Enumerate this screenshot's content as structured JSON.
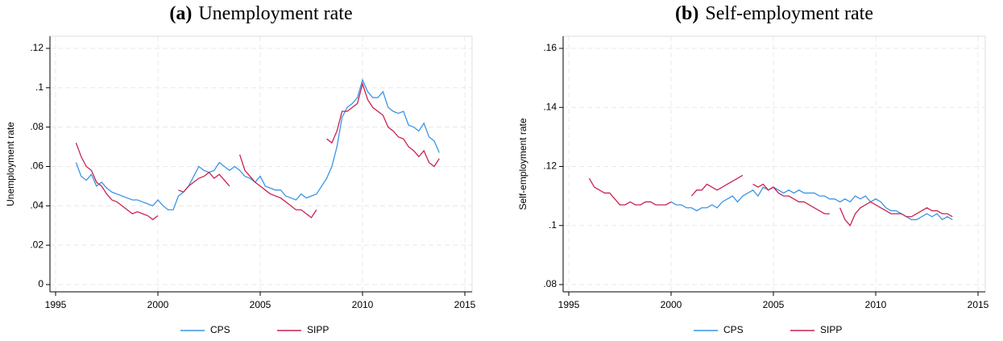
{
  "chart_data": [
    {
      "type": "line",
      "panel": "(a)",
      "title": "Unemployment rate",
      "ylabel": "Unemployment rate",
      "x": [
        1996,
        1996.25,
        1996.5,
        1996.75,
        1997,
        1997.25,
        1997.5,
        1997.75,
        1998,
        1998.25,
        1998.5,
        1998.75,
        1999,
        1999.25,
        1999.5,
        1999.75,
        2000,
        2000.25,
        2000.5,
        2000.75,
        2001,
        2001.25,
        2001.5,
        2001.75,
        2002,
        2002.25,
        2002.5,
        2002.75,
        2003,
        2003.25,
        2003.5,
        2003.75,
        2004,
        2004.25,
        2004.5,
        2004.75,
        2005,
        2005.25,
        2005.5,
        2005.75,
        2006,
        2006.25,
        2006.5,
        2006.75,
        2007,
        2007.25,
        2007.5,
        2007.75,
        2008,
        2008.25,
        2008.5,
        2008.75,
        2009,
        2009.25,
        2009.5,
        2009.75,
        2010,
        2010.25,
        2010.5,
        2010.75,
        2011,
        2011.25,
        2011.5,
        2011.75,
        2012,
        2012.25,
        2012.5,
        2012.75,
        2013,
        2013.25,
        2013.5,
        2013.75
      ],
      "series": [
        {
          "name": "CPS",
          "color": "#3b95e6",
          "values": [
            0.062,
            0.055,
            0.053,
            0.056,
            0.05,
            0.052,
            0.049,
            0.047,
            0.046,
            0.045,
            0.044,
            0.043,
            0.043,
            0.042,
            0.041,
            0.04,
            0.043,
            0.04,
            0.038,
            0.038,
            0.045,
            0.047,
            0.05,
            0.055,
            0.06,
            0.058,
            0.057,
            0.058,
            0.062,
            0.06,
            0.058,
            0.06,
            0.058,
            0.055,
            0.054,
            0.052,
            0.055,
            0.05,
            0.049,
            0.048,
            0.048,
            0.045,
            0.044,
            0.043,
            0.046,
            0.044,
            0.045,
            0.046,
            0.05,
            0.054,
            0.06,
            0.07,
            0.085,
            0.09,
            0.092,
            0.095,
            0.104,
            0.098,
            0.095,
            0.095,
            0.098,
            0.09,
            0.088,
            0.087,
            0.088,
            0.081,
            0.08,
            0.078,
            0.082,
            0.075,
            0.073,
            0.067
          ]
        },
        {
          "name": "SIPP",
          "color": "#c8224f",
          "values": [
            0.072,
            0.065,
            0.06,
            0.058,
            0.052,
            0.05,
            0.046,
            0.043,
            0.042,
            0.04,
            0.038,
            0.036,
            0.037,
            0.036,
            0.035,
            0.033,
            0.035,
            null,
            null,
            null,
            0.048,
            0.047,
            0.05,
            0.052,
            0.054,
            0.055,
            0.057,
            0.054,
            0.056,
            0.053,
            0.05,
            null,
            0.066,
            0.058,
            0.055,
            0.052,
            0.05,
            0.048,
            0.046,
            0.045,
            0.044,
            0.042,
            0.04,
            0.038,
            0.038,
            0.036,
            0.034,
            0.038,
            null,
            0.074,
            0.072,
            0.078,
            0.088,
            0.088,
            0.09,
            0.092,
            0.102,
            0.094,
            0.09,
            0.088,
            0.086,
            0.08,
            0.078,
            0.075,
            0.074,
            0.07,
            0.068,
            0.065,
            0.068,
            0.062,
            0.06,
            0.064
          ]
        }
      ],
      "xlim": [
        1995,
        2015
      ],
      "xticks": [
        1995,
        2000,
        2005,
        2010,
        2015
      ],
      "ylim": [
        0,
        0.12
      ],
      "yticks": [
        0,
        {
          "value": 0.02,
          "label": ".02"
        },
        {
          "value": 0.04,
          "label": ".04"
        },
        {
          "value": 0.06,
          "label": ".06"
        },
        {
          "value": 0.08,
          "label": ".08"
        },
        {
          "value": 0.1,
          "label": ".1"
        },
        {
          "value": 0.12,
          "label": ".12"
        }
      ],
      "grid": true,
      "legend": "bottom"
    },
    {
      "type": "line",
      "panel": "(b)",
      "title": "Self-employment rate",
      "ylabel": "Self-employment rate",
      "x": [
        1996,
        1996.25,
        1996.5,
        1996.75,
        1997,
        1997.25,
        1997.5,
        1997.75,
        1998,
        1998.25,
        1998.5,
        1998.75,
        1999,
        1999.25,
        1999.5,
        1999.75,
        2000,
        2000.25,
        2000.5,
        2000.75,
        2001,
        2001.25,
        2001.5,
        2001.75,
        2002,
        2002.25,
        2002.5,
        2002.75,
        2003,
        2003.25,
        2003.5,
        2003.75,
        2004,
        2004.25,
        2004.5,
        2004.75,
        2005,
        2005.25,
        2005.5,
        2005.75,
        2006,
        2006.25,
        2006.5,
        2006.75,
        2007,
        2007.25,
        2007.5,
        2007.75,
        2008,
        2008.25,
        2008.5,
        2008.75,
        2009,
        2009.25,
        2009.5,
        2009.75,
        2010,
        2010.25,
        2010.5,
        2010.75,
        2011,
        2011.25,
        2011.5,
        2011.75,
        2012,
        2012.25,
        2012.5,
        2012.75,
        2013,
        2013.25,
        2013.5,
        2013.75
      ],
      "series": [
        {
          "name": "CPS",
          "color": "#3b95e6",
          "values": [
            null,
            null,
            null,
            null,
            null,
            null,
            null,
            null,
            null,
            null,
            null,
            null,
            null,
            null,
            null,
            null,
            0.108,
            0.107,
            0.107,
            0.106,
            0.106,
            0.105,
            0.106,
            0.106,
            0.107,
            0.106,
            0.108,
            0.109,
            0.11,
            0.108,
            0.11,
            0.111,
            0.112,
            0.11,
            0.113,
            0.112,
            0.113,
            0.112,
            0.111,
            0.112,
            0.111,
            0.112,
            0.111,
            0.111,
            0.111,
            0.11,
            0.11,
            0.109,
            0.109,
            0.108,
            0.109,
            0.108,
            0.11,
            0.109,
            0.11,
            0.108,
            0.109,
            0.108,
            0.106,
            0.105,
            0.105,
            0.104,
            0.103,
            0.102,
            0.102,
            0.103,
            0.104,
            0.103,
            0.104,
            0.102,
            0.103,
            0.102
          ]
        },
        {
          "name": "SIPP",
          "color": "#c8224f",
          "values": [
            0.116,
            0.113,
            0.112,
            0.111,
            0.111,
            0.109,
            0.107,
            0.107,
            0.108,
            0.107,
            0.107,
            0.108,
            0.108,
            0.107,
            0.107,
            0.107,
            0.108,
            null,
            null,
            null,
            0.11,
            0.112,
            0.112,
            0.114,
            0.113,
            0.112,
            0.113,
            0.114,
            0.115,
            0.116,
            0.117,
            null,
            0.114,
            0.113,
            0.114,
            0.112,
            0.113,
            0.111,
            0.11,
            0.11,
            0.109,
            0.108,
            0.108,
            0.107,
            0.106,
            0.105,
            0.104,
            0.104,
            null,
            0.106,
            0.102,
            0.1,
            0.104,
            0.106,
            0.107,
            0.108,
            0.107,
            0.106,
            0.105,
            0.104,
            0.104,
            0.104,
            0.103,
            0.103,
            0.104,
            0.105,
            0.106,
            0.105,
            0.105,
            0.104,
            0.104,
            0.103
          ]
        }
      ],
      "xlim": [
        1995,
        2015
      ],
      "xticks": [
        1995,
        2000,
        2005,
        2010,
        2015
      ],
      "ylim": [
        0.08,
        0.16
      ],
      "yticks": [
        {
          "value": 0.08,
          "label": ".08"
        },
        {
          "value": 0.1,
          "label": ".1"
        },
        {
          "value": 0.12,
          "label": ".12"
        },
        {
          "value": 0.14,
          "label": ".14"
        },
        {
          "value": 0.16,
          "label": ".16"
        }
      ],
      "grid": true,
      "legend": "bottom"
    }
  ]
}
